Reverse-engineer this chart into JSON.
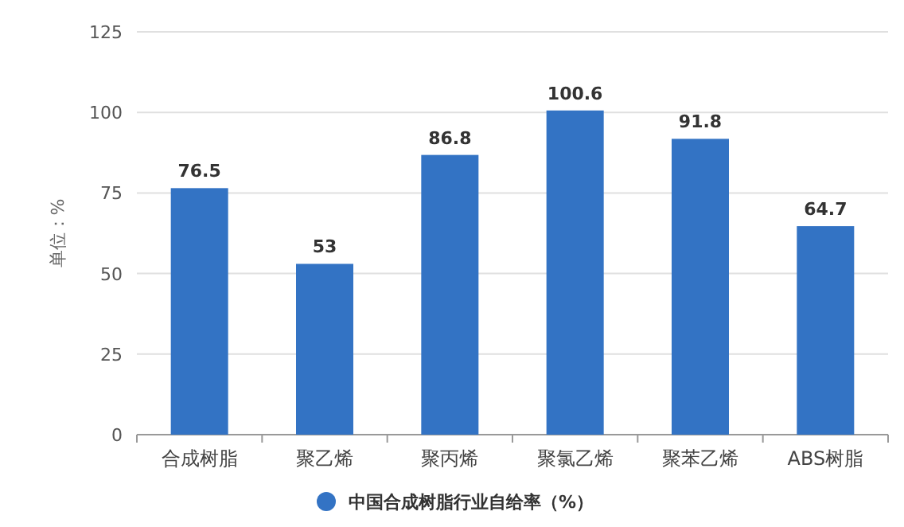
{
  "chart_data": {
    "type": "bar",
    "ylabel": "单位：%",
    "categories": [
      "合成树脂",
      "聚乙烯",
      "聚丙烯",
      "聚氯乙烯",
      "聚苯乙烯",
      "ABS树脂"
    ],
    "series": [
      {
        "name": "中国合成树脂行业自给率（%）",
        "color": "#3373c4",
        "values": [
          76.5,
          53,
          86.8,
          100.6,
          91.8,
          64.7
        ]
      }
    ],
    "ylim": [
      0,
      125
    ],
    "yticks": [
      0,
      25,
      50,
      75,
      100,
      125
    ],
    "grid": "y",
    "data_labels": true,
    "legend": "bottom"
  }
}
